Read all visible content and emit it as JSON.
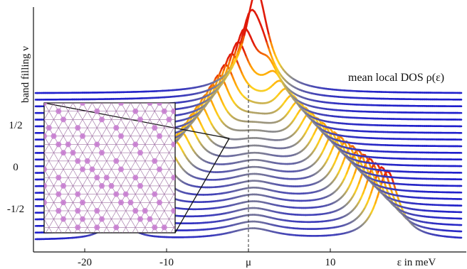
{
  "chart_data": {
    "type": "line",
    "title": "",
    "xlabel": "ε in meV",
    "ylabel": "band filling ν",
    "curve_label": "mean local DOS ρ(ε)",
    "x_ticks": [
      {
        "value": -20,
        "label": "-20"
      },
      {
        "value": -10,
        "label": "-10"
      },
      {
        "value": 0,
        "label": "μ"
      },
      {
        "value": 10,
        "label": "10"
      }
    ],
    "y_ticks": [
      {
        "value": 0.5,
        "label": "1/2"
      },
      {
        "value": 0,
        "label": "0"
      },
      {
        "value": -0.5,
        "label": "-1/2"
      }
    ],
    "xlim": [
      -26,
      26
    ],
    "ylim": [
      -0.95,
      1.05
    ],
    "chemical_potential": 0,
    "series_count": 23,
    "series_filling_range": [
      -0.875,
      0.875
    ],
    "colormap": [
      "#1a1acf",
      "#8c8c8c",
      "#ffd21e",
      "#ff9a00",
      "#e01a0a"
    ],
    "inset": "triangular lattice of sites with magenta dots (kagome-like pattern)"
  }
}
